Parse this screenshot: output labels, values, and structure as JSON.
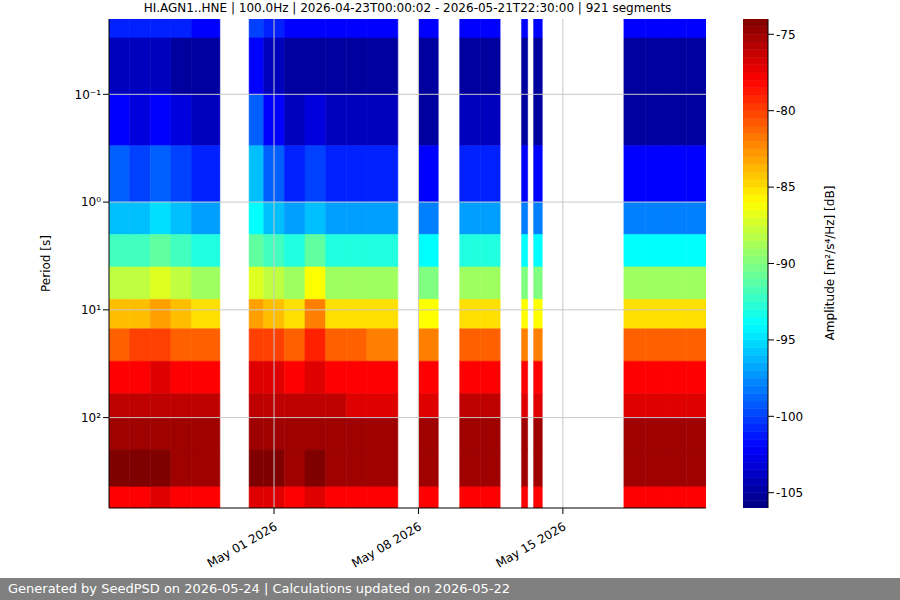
{
  "chart_data": {
    "type": "heatmap",
    "title": "HI.AGN1..HNE | 100.0Hz | 2026-04-23T00:00:02 - 2026-05-21T22:30:00 | 921 segments",
    "footer": "Generated by SeedPSD on 2026-05-24 | Calculations updated on 2026-05-22",
    "y_label": "Period [s]",
    "log": "y",
    "grid": true,
    "xlim": [
      "2026-04-23T00:00:02",
      "2026-05-21T22:30:00"
    ],
    "xticks": [
      {
        "value": "2026-05-01",
        "label": "May 01 2026"
      },
      {
        "value": "2026-05-08",
        "label": "May 08 2026"
      },
      {
        "value": "2026-05-15",
        "label": "May 15 2026"
      }
    ],
    "ylim": [
      0.02,
      690
    ],
    "yticks": [
      {
        "value": 0.1,
        "label": "10⁻¹"
      },
      {
        "value": 1,
        "label": "10⁰"
      },
      {
        "value": 10,
        "label": "10¹"
      },
      {
        "value": 100,
        "label": "10²"
      }
    ],
    "period_bins": [
      0.02,
      0.03,
      0.1,
      0.3,
      1,
      2,
      4,
      8,
      15,
      30,
      60,
      100,
      200,
      440,
      690
    ],
    "segments": [
      {
        "start": "2026-04-23T00:00:02",
        "end": "2026-04-24T00:00:00",
        "values": [
          -101,
          -104,
          -102,
          -99,
          -96,
          -92,
          -88,
          -84,
          -81,
          -78,
          -76,
          -75,
          -74,
          -78
        ]
      },
      {
        "start": "2026-04-24T00:00:00",
        "end": "2026-04-25T00:00:00",
        "values": [
          -101,
          -104,
          -103,
          -100,
          -96,
          -92,
          -88,
          -84,
          -80,
          -78,
          -76,
          -75,
          -74,
          -78
        ]
      },
      {
        "start": "2026-04-25T00:00:00",
        "end": "2026-04-26T00:00:00",
        "values": [
          -101,
          -104,
          -102,
          -99,
          -95,
          -91,
          -87,
          -83,
          -80,
          -77,
          -76,
          -75,
          -74,
          -77
        ]
      },
      {
        "start": "2026-04-26T00:00:00",
        "end": "2026-04-27T00:00:00",
        "values": [
          -101,
          -105,
          -103,
          -100,
          -96,
          -92,
          -88,
          -84,
          -81,
          -78,
          -76,
          -75,
          -75,
          -78
        ]
      },
      {
        "start": "2026-04-27T00:00:00",
        "end": "2026-04-28T09:00:00",
        "values": [
          -102,
          -105,
          -104,
          -101,
          -97,
          -93,
          -89,
          -85,
          -81,
          -78,
          -76,
          -75,
          -75,
          -78
        ]
      },
      {
        "start": "2026-04-29T19:00:00",
        "end": "2026-04-30T12:00:00",
        "values": [
          -100,
          -102,
          -99,
          -96,
          -94,
          -91,
          -87,
          -83,
          -80,
          -77,
          -76,
          -75,
          -74,
          -77
        ]
      },
      {
        "start": "2026-04-30T12:00:00",
        "end": "2026-05-01T12:00:00",
        "values": [
          -101,
          -104,
          -102,
          -99,
          -96,
          -92,
          -88,
          -84,
          -80,
          -77,
          -76,
          -75,
          -74,
          -77
        ]
      },
      {
        "start": "2026-05-01T12:00:00",
        "end": "2026-05-02T12:00:00",
        "values": [
          -102,
          -105,
          -104,
          -101,
          -97,
          -93,
          -89,
          -85,
          -81,
          -78,
          -76,
          -75,
          -75,
          -78
        ]
      },
      {
        "start": "2026-05-02T12:00:00",
        "end": "2026-05-03T12:00:00",
        "values": [
          -102,
          -105,
          -103,
          -100,
          -96,
          -91,
          -86,
          -82,
          -79,
          -77,
          -76,
          -75,
          -74,
          -77
        ]
      },
      {
        "start": "2026-05-03T12:00:00",
        "end": "2026-05-04T12:00:00",
        "values": [
          -102,
          -105,
          -104,
          -101,
          -97,
          -93,
          -89,
          -85,
          -81,
          -78,
          -76,
          -75,
          -75,
          -78
        ]
      },
      {
        "start": "2026-05-04T12:00:00",
        "end": "2026-05-05T12:00:00",
        "values": [
          -102,
          -105,
          -104,
          -101,
          -97,
          -93,
          -89,
          -85,
          -81,
          -78,
          -77,
          -75,
          -75,
          -78
        ]
      },
      {
        "start": "2026-05-05T12:00:00",
        "end": "2026-05-07T00:00:00",
        "values": [
          -102,
          -105,
          -104,
          -101,
          -97,
          -93,
          -89,
          -85,
          -82,
          -78,
          -77,
          -75,
          -75,
          -78
        ]
      },
      {
        "start": "2026-05-08T00:00:00",
        "end": "2026-05-08T23:00:00",
        "values": [
          -102,
          -105,
          -105,
          -102,
          -98,
          -94,
          -90,
          -86,
          -82,
          -78,
          -77,
          -75,
          -75,
          -78
        ]
      },
      {
        "start": "2026-05-10T00:00:00",
        "end": "2026-05-11T00:00:00",
        "values": [
          -102,
          -105,
          -104,
          -101,
          -97,
          -93,
          -89,
          -85,
          -81,
          -78,
          -76,
          -75,
          -75,
          -78
        ]
      },
      {
        "start": "2026-05-11T00:00:00",
        "end": "2026-05-11T23:00:00",
        "values": [
          -102,
          -105,
          -104,
          -101,
          -97,
          -93,
          -89,
          -85,
          -81,
          -78,
          -76,
          -75,
          -75,
          -78
        ]
      },
      {
        "start": "2026-05-13T00:00:00",
        "end": "2026-05-13T07:00:00",
        "values": [
          -102,
          -105,
          -105,
          -102,
          -98,
          -94,
          -90,
          -86,
          -82,
          -78,
          -77,
          -75,
          -75,
          -78
        ]
      },
      {
        "start": "2026-05-13T14:00:00",
        "end": "2026-05-14T00:00:00",
        "values": [
          -102,
          -105,
          -105,
          -102,
          -98,
          -94,
          -90,
          -86,
          -82,
          -78,
          -77,
          -75,
          -75,
          -78
        ]
      },
      {
        "start": "2026-05-17T23:00:00",
        "end": "2026-05-19T00:00:00",
        "values": [
          -102,
          -105,
          -105,
          -102,
          -98,
          -94,
          -89,
          -85,
          -81,
          -78,
          -77,
          -75,
          -75,
          -78
        ]
      },
      {
        "start": "2026-05-19T00:00:00",
        "end": "2026-05-20T00:00:00",
        "values": [
          -102,
          -105,
          -105,
          -102,
          -98,
          -94,
          -89,
          -85,
          -81,
          -78,
          -77,
          -75,
          -75,
          -78
        ]
      },
      {
        "start": "2026-05-20T00:00:00",
        "end": "2026-05-21T00:00:00",
        "values": [
          -102,
          -105,
          -105,
          -102,
          -98,
          -94,
          -89,
          -85,
          -81,
          -78,
          -77,
          -75,
          -75,
          -78
        ]
      },
      {
        "start": "2026-05-21T00:00:00",
        "end": "2026-05-21T22:30:00",
        "values": [
          -102,
          -105,
          -105,
          -102,
          -98,
          -94,
          -89,
          -85,
          -81,
          -78,
          -77,
          -75,
          -75,
          -78
        ]
      }
    ],
    "colorbar": {
      "label": "Amplitude [m²/s⁴/Hz] [dB]",
      "range": [
        -106,
        -74
      ],
      "ticks": [
        -105,
        -100,
        -95,
        -90,
        -85,
        -80,
        -75
      ]
    }
  }
}
